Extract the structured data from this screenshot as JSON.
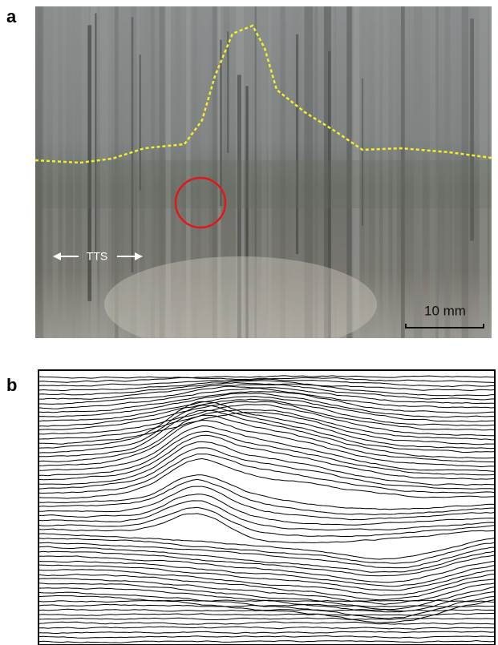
{
  "panels": [
    {
      "label": "a",
      "arrow_label": "TTS",
      "scale_bar": "10 mm"
    },
    {
      "label": "b"
    }
  ]
}
